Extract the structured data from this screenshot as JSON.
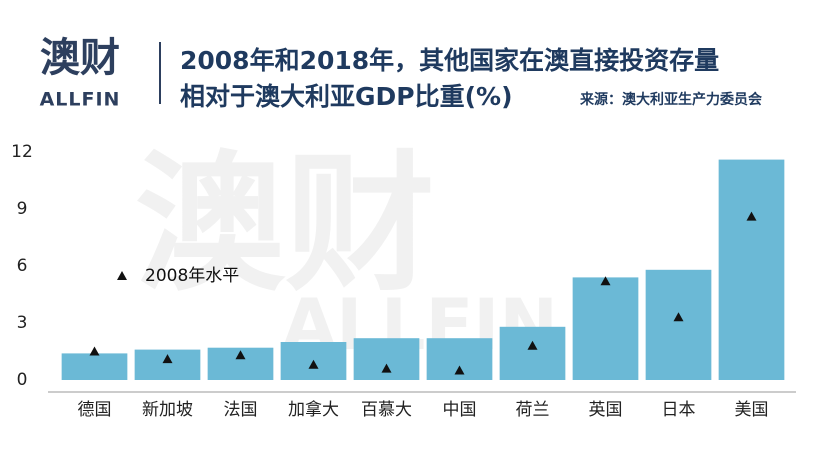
{
  "logo": {
    "name": "澳财",
    "sub": "ALLFIN"
  },
  "chart_data": {
    "type": "bar",
    "title": [
      "2008年和2018年，其他国家在澳直接投资存量",
      "相对于澳大利亚GDP比重(%)"
    ],
    "source": "来源：澳大利亚生产力委员会",
    "categories": [
      "德国",
      "新加坡",
      "法国",
      "加拿大",
      "百慕大",
      "中国",
      "荷兰",
      "英国",
      "日本",
      "美国"
    ],
    "values": [
      1.4,
      1.6,
      1.7,
      2.0,
      2.2,
      2.2,
      2.8,
      5.4,
      5.8,
      11.6
    ],
    "color": "#6bb9d6",
    "markers": {
      "name": "2008年水平",
      "color": "#111111",
      "values": [
        1.5,
        1.1,
        1.3,
        0.8,
        0.6,
        0.5,
        1.8,
        5.2,
        3.3,
        8.6
      ]
    },
    "ylim": [
      0,
      12
    ],
    "yticks": [
      0,
      3,
      6,
      9,
      12
    ]
  }
}
